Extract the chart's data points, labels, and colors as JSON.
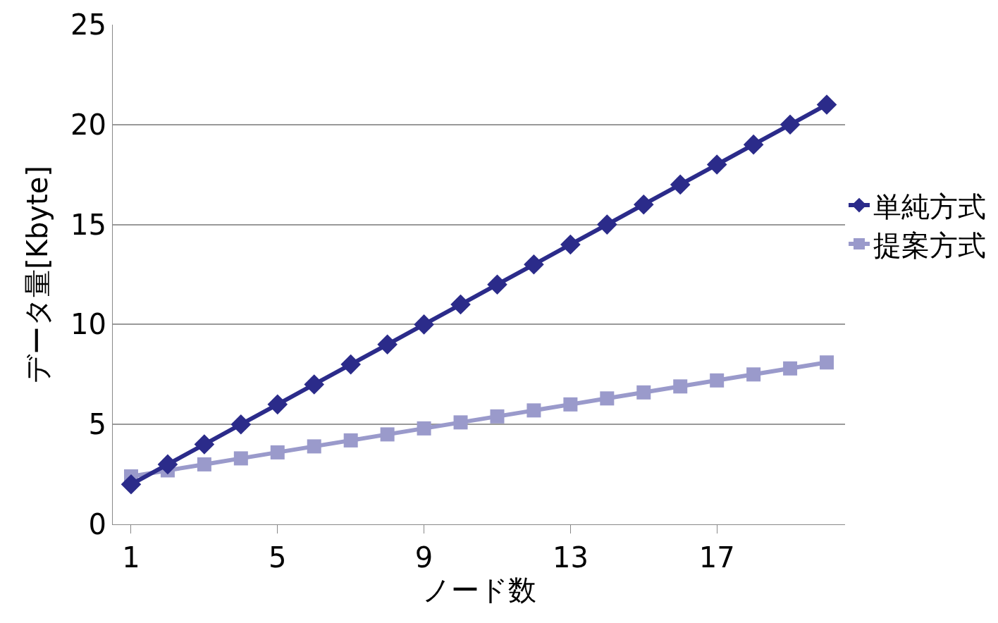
{
  "chart_data": {
    "type": "line",
    "xlabel": "ノード数",
    "ylabel": "データ量[Kbyte]",
    "x": [
      1,
      2,
      3,
      4,
      5,
      6,
      7,
      8,
      9,
      10,
      11,
      12,
      13,
      14,
      15,
      16,
      17,
      18,
      19,
      20
    ],
    "series": [
      {
        "name": "単純方式",
        "color": "#2b2b8a",
        "marker": "diamond",
        "values": [
          2,
          3,
          4,
          5,
          6,
          7,
          8,
          9,
          10,
          11,
          12,
          13,
          14,
          15,
          16,
          17,
          18,
          19,
          20,
          21
        ]
      },
      {
        "name": "提案方式",
        "color": "#9a9acb",
        "marker": "square",
        "values": [
          2.4,
          2.7,
          3.0,
          3.3,
          3.6,
          3.9,
          4.2,
          4.5,
          4.8,
          5.1,
          5.4,
          5.7,
          6.0,
          6.3,
          6.6,
          6.9,
          7.2,
          7.5,
          7.8,
          8.1
        ]
      }
    ],
    "xlim": [
      0.5,
      20.5
    ],
    "xticks": [
      1,
      5,
      9,
      13,
      17
    ],
    "ylim": [
      0,
      25
    ],
    "yticks": [
      0,
      5,
      10,
      15,
      20,
      25
    ],
    "grid": "y",
    "legend": "right",
    "line_style": "solid"
  }
}
